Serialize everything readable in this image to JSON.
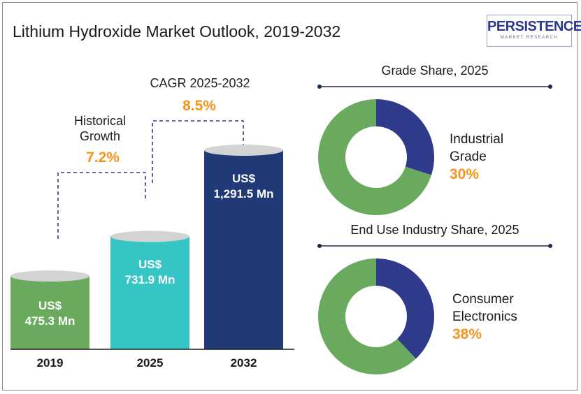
{
  "title": "Lithium Hydroxide Market Outlook, 2019-2032",
  "logo": {
    "main": "PERSISTENCE",
    "sub": "MARKET RESEARCH"
  },
  "annotations": {
    "historical_label_1": "Historical",
    "historical_label_2": "Growth",
    "historical_value": "7.2%",
    "cagr_label": "CAGR 2025-2032",
    "cagr_value": "8.5%"
  },
  "colors": {
    "bar_2019": "#6aaa5e",
    "bar_2025": "#36c5c5",
    "bar_2032": "#1f3a76",
    "donut_green": "#6aaa5e",
    "donut_navy": "#2f3a8a",
    "accent": "#f7941d",
    "divider": "#1f2a4a"
  },
  "chart_data": [
    {
      "type": "bar",
      "categories": [
        "2019",
        "2025",
        "2032"
      ],
      "values": [
        475.3,
        731.9,
        1291.5
      ],
      "value_labels": [
        {
          "line1": "US$",
          "line2": "475.3 Mn"
        },
        {
          "line1": "US$",
          "line2": "731.9 Mn"
        },
        {
          "line1": "US$",
          "line2": "1,291.5 Mn"
        }
      ]
    },
    {
      "type": "pie",
      "title": "Grade Share, 2025",
      "segment_label_1": "Industrial",
      "segment_label_2": "Grade",
      "value": 30,
      "value_label": "30%"
    },
    {
      "type": "pie",
      "title": "End Use Industry Share, 2025",
      "segment_label_1": "Consumer",
      "segment_label_2": "Electronics",
      "value": 38,
      "value_label": "38%"
    }
  ]
}
